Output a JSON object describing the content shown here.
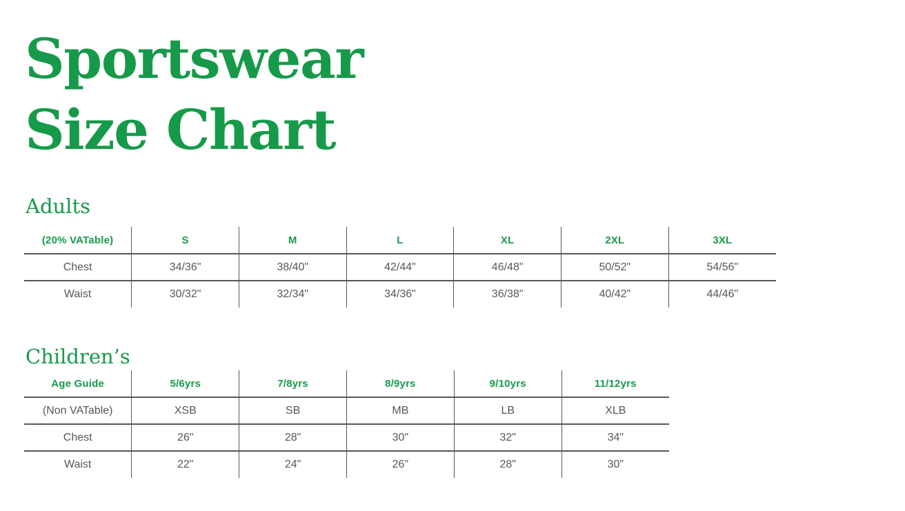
{
  "page": {
    "title_line1": "Sportswear",
    "title_line2": "Size Chart"
  },
  "colors": {
    "brand_green": "#169A4A",
    "text_gray": "#54565A",
    "line_gray": "#54565A",
    "background": "#FFFFFF"
  },
  "adults": {
    "heading": "Adults",
    "table": {
      "header": [
        "(20% VATable)",
        "S",
        "M",
        "L",
        "XL",
        "2XL",
        "3XL"
      ],
      "rows": [
        {
          "label": "Chest",
          "values": [
            "34/36\"",
            "38/40\"",
            "42/44\"",
            "46/48\"",
            "50/52\"",
            "54/56\""
          ]
        },
        {
          "label": "Waist",
          "values": [
            "30/32\"",
            "32/34\"",
            "34/36\"",
            "36/38\"",
            "40/42\"",
            "44/46\""
          ]
        }
      ]
    }
  },
  "children": {
    "heading": "Children’s",
    "table": {
      "header": [
        "Age Guide",
        "5/6yrs",
        "7/8yrs",
        "8/9yrs",
        "9/10yrs",
        "11/12yrs"
      ],
      "rows": [
        {
          "label": "(Non VATable)",
          "values": [
            "XSB",
            "SB",
            "MB",
            "LB",
            "XLB"
          ]
        },
        {
          "label": "Chest",
          "values": [
            "26\"",
            "28\"",
            "30\"",
            "32\"",
            "34\""
          ]
        },
        {
          "label": "Waist",
          "values": [
            "22\"",
            "24\"",
            "26\"",
            "28\"",
            "30\""
          ]
        }
      ]
    }
  }
}
